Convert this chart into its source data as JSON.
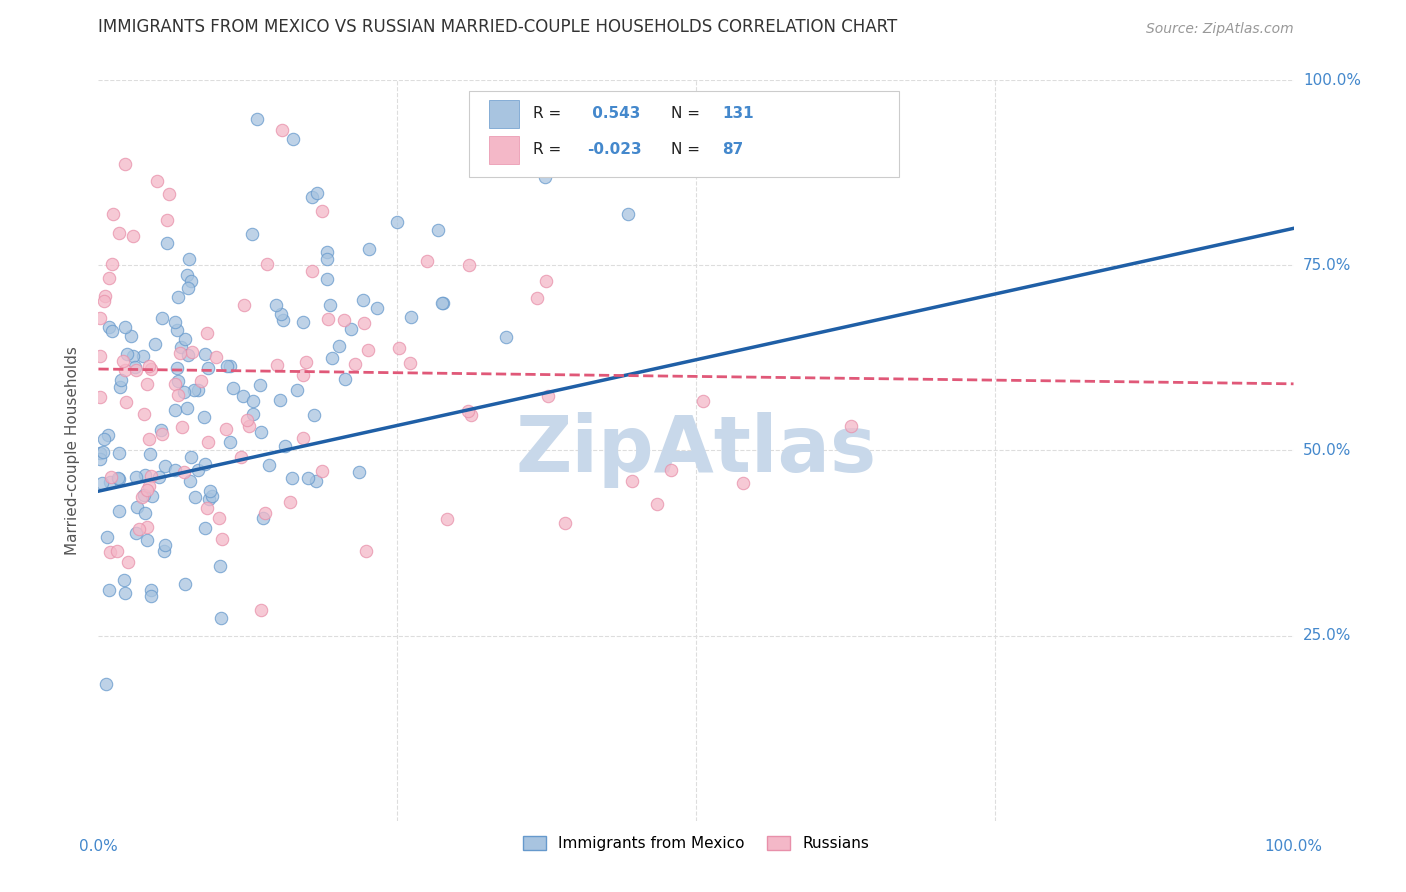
{
  "title": "IMMIGRANTS FROM MEXICO VS RUSSIAN MARRIED-COUPLE HOUSEHOLDS CORRELATION CHART",
  "source": "Source: ZipAtlas.com",
  "ylabel": "Married-couple Households",
  "xlim": [
    0.0,
    1.0
  ],
  "ylim": [
    0.0,
    1.0
  ],
  "mexico_R": 0.543,
  "mexico_N": 131,
  "russia_R": -0.023,
  "russia_N": 87,
  "mexico_color": "#a8c4e0",
  "russia_color": "#f4b8c8",
  "mexico_edge_color": "#6699cc",
  "russia_edge_color": "#e890aa",
  "mexico_line_color": "#1f5fa6",
  "russia_line_color": "#e05878",
  "watermark": "ZipAtlas",
  "watermark_color": "#c8d8ea",
  "background_color": "#ffffff",
  "title_color": "#333333",
  "axis_label_color": "#555555",
  "tick_label_color": "#4488cc",
  "grid_color": "#dddddd",
  "legend_text_color": "#222222",
  "mexico_line_start_y": 0.445,
  "mexico_line_end_y": 0.8,
  "russia_line_start_y": 0.61,
  "russia_line_end_y": 0.59
}
